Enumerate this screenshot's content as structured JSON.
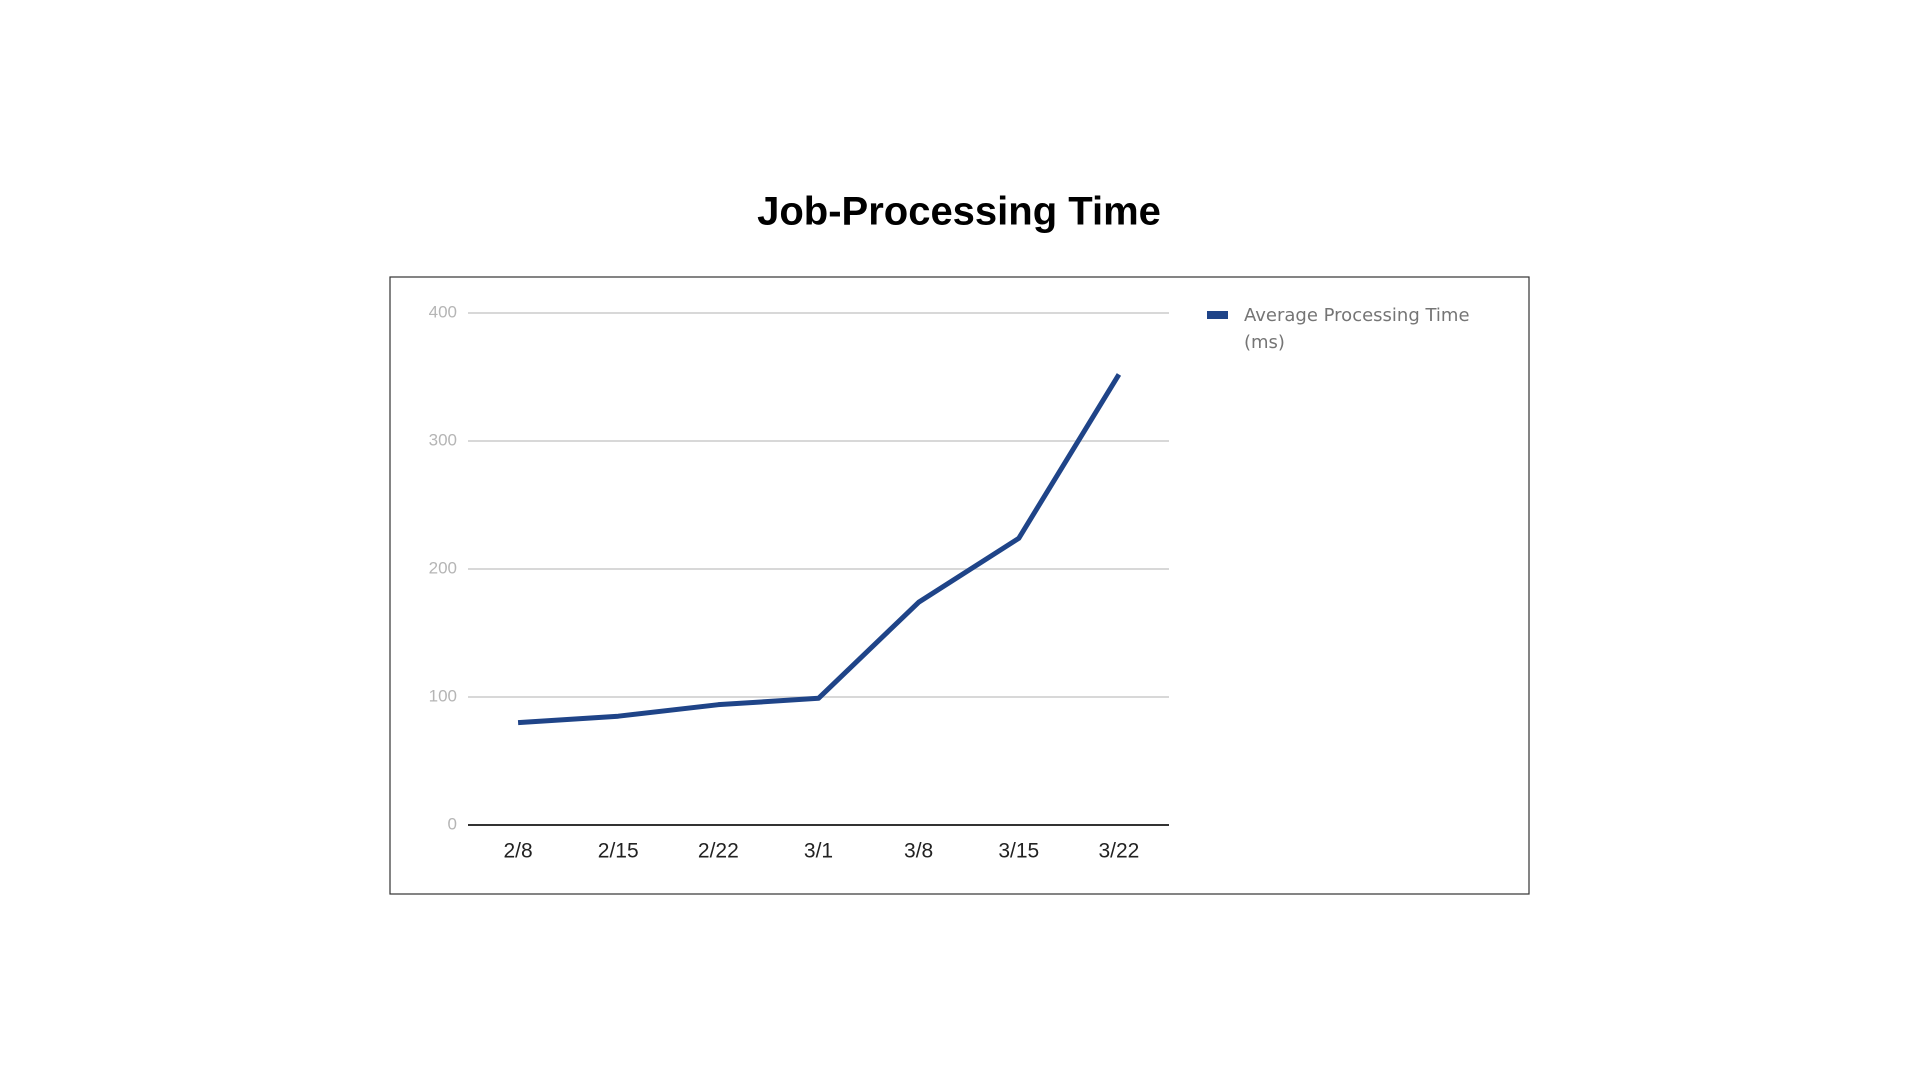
{
  "chart_data": {
    "type": "line",
    "title": "Job-Processing Time",
    "categories": [
      "2/8",
      "2/15",
      "2/22",
      "3/1",
      "3/8",
      "3/15",
      "3/22"
    ],
    "series": [
      {
        "name": "Average Processing Time (ms)",
        "color": "#1f4488",
        "values": [
          80,
          85,
          94,
          99,
          174,
          224,
          352
        ]
      }
    ],
    "ylim": [
      0,
      400
    ],
    "yticks": [
      0,
      100,
      200,
      300,
      400
    ],
    "grid": true,
    "legend": "right"
  }
}
